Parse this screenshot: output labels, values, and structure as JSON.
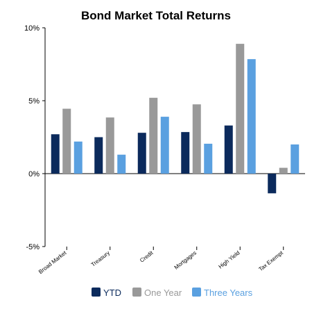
{
  "chart_data": {
    "type": "bar",
    "title": "Bond Market Total Returns",
    "categories": [
      "Broad Market",
      "Treasury",
      "Credit",
      "Mortgages",
      "High Yield",
      "Tax Exempt"
    ],
    "series": [
      {
        "name": "YTD",
        "color": "#0b2a5c",
        "values": [
          2.7,
          2.5,
          2.8,
          2.85,
          3.3,
          -1.35
        ]
      },
      {
        "name": "One Year",
        "color": "#999999",
        "values": [
          4.45,
          3.85,
          5.2,
          4.75,
          8.9,
          0.4
        ]
      },
      {
        "name": "Three Years",
        "color": "#5aa0e0",
        "values": [
          2.2,
          1.3,
          3.9,
          2.05,
          7.85,
          2.0
        ]
      }
    ],
    "ylim": [
      -5,
      10
    ],
    "yticks": [
      {
        "value": 10,
        "label": "10%"
      },
      {
        "value": 5,
        "label": "5%"
      },
      {
        "value": 0,
        "label": "0%"
      },
      {
        "value": -5,
        "label": "-5%"
      }
    ],
    "xlabel": "",
    "ylabel": "",
    "grid": false,
    "legend": "bottom"
  }
}
